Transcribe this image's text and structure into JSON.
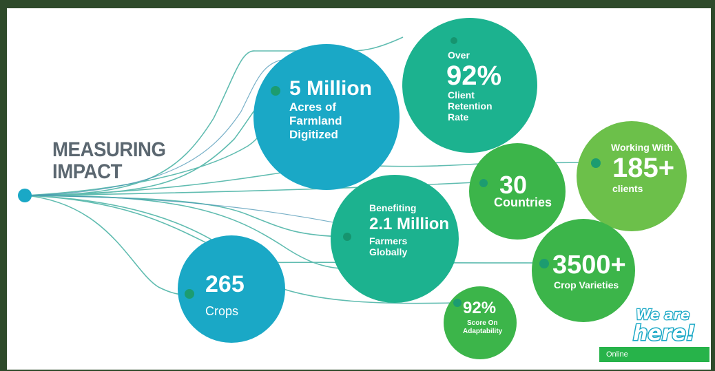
{
  "title": {
    "line1": "MEASURING",
    "line2": "IMPACT"
  },
  "bubbles": {
    "acres": {
      "big": "5 Million",
      "l1": "Acres of",
      "l2": "Farmland",
      "l3": "Digitized"
    },
    "retention": {
      "small": "Over",
      "big": "92%",
      "l1": "Client",
      "l2": "Retention",
      "l3": "Rate"
    },
    "working": {
      "small": "Working With",
      "big": "185+",
      "l1": "clients"
    },
    "countries": {
      "big": "30",
      "l1": "Countries"
    },
    "farmers": {
      "small": "Benefiting",
      "big": "2.1 Million",
      "l1": "Farmers",
      "l2": "Globally"
    },
    "varieties": {
      "big": "3500+",
      "l1": "Crop Varieties"
    },
    "crops": {
      "big": "265",
      "l1": "Crops"
    },
    "adaptability": {
      "big": "92%",
      "l1": "Score On",
      "l2": "Adaptability"
    }
  },
  "logo": {
    "line1": "We are",
    "line2": "here!"
  },
  "chat": {
    "status": "Online"
  },
  "colors": {
    "blue": "#1aa8c6",
    "teal": "#1cb28f",
    "green": "#3cb54a",
    "light_green": "#6cc04a",
    "title_gray": "#5b6770"
  }
}
